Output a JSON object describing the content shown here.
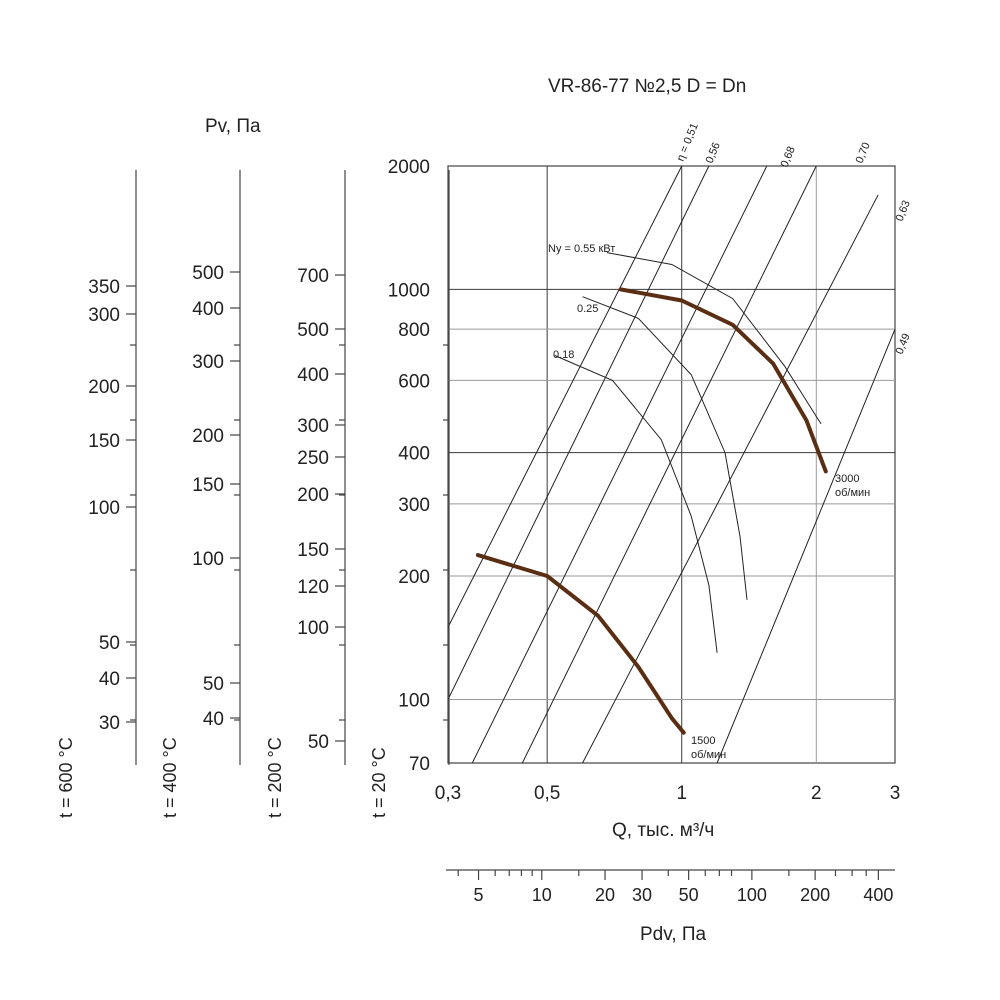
{
  "chart_data": {
    "type": "line",
    "title": "VR-86-77 №2,5 D = Dn",
    "xlabel": "Q, тыс. м³/ч",
    "ylabel": "Pv, Па",
    "x_scale": "log",
    "y_scale": "log",
    "xlim": [
      0.3,
      3
    ],
    "ylim": [
      70,
      2000
    ],
    "x_ticks": [
      "0,3",
      "0,5",
      "1",
      "2",
      "3"
    ],
    "y_ticks": [
      "70",
      "100",
      "200",
      "300",
      "400",
      "600",
      "800",
      "1000",
      "2000"
    ],
    "series": [
      {
        "name": "3000 об/мин",
        "x": [
          0.73,
          1.0,
          1.3,
          1.6,
          1.9,
          2.1
        ],
        "y": [
          1000,
          940,
          820,
          660,
          480,
          360
        ],
        "color": "#5a2e12"
      },
      {
        "name": "1500 об/мин",
        "x": [
          0.35,
          0.5,
          0.65,
          0.8,
          0.95,
          1.01
        ],
        "y": [
          225,
          200,
          160,
          120,
          90,
          83
        ],
        "color": "#5a2e12"
      }
    ],
    "efficiency_lines": [
      "η = 0,51",
      "0,56",
      "0,68",
      "0,70",
      "0,63",
      "0,49"
    ],
    "power_curves": [
      "Ny = 0.55 кВт",
      "0.25",
      "0.18"
    ],
    "scales": {
      "t600": {
        "label": "t = 600 °C",
        "ticks": [
          "350",
          "300",
          "200",
          "150",
          "100",
          "50",
          "40",
          "30"
        ]
      },
      "t400": {
        "label": "t = 400 °C",
        "ticks": [
          "500",
          "400",
          "300",
          "200",
          "150",
          "100",
          "50",
          "40"
        ]
      },
      "t200": {
        "label": "t = 200 °C",
        "ticks": [
          "700",
          "500",
          "400",
          "300",
          "250",
          "200",
          "150",
          "120",
          "100",
          "50"
        ]
      },
      "t20": {
        "label": "t = 20 °C"
      }
    },
    "pdv_axis": {
      "label": "Pdv, Па",
      "ticks": [
        "5",
        "10",
        "20",
        "30",
        "50",
        "100",
        "200",
        "400"
      ]
    }
  }
}
